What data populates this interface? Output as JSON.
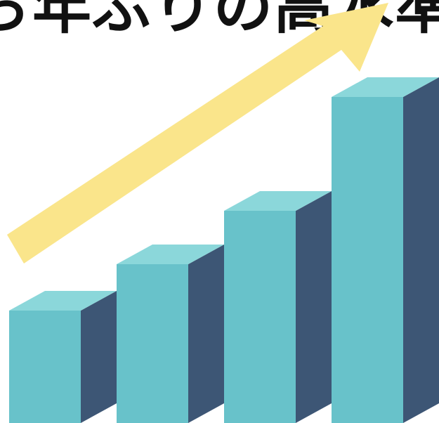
{
  "headline": "ら年ぶりの高水準",
  "chart_data": {
    "type": "bar",
    "categories": [
      "",
      "",
      "",
      ""
    ],
    "values": [
      160,
      226,
      302,
      464
    ],
    "title": "",
    "xlabel": "",
    "ylabel": "",
    "ylim": [
      0,
      602
    ],
    "grid": false,
    "legend": "none",
    "trend_arrow": "rising"
  },
  "colors": {
    "bar_front": "#68c2ca",
    "bar_top": "#8bd7da",
    "bar_side": "#3d5675",
    "arrow": "#fae58b",
    "headline": "#111111"
  }
}
